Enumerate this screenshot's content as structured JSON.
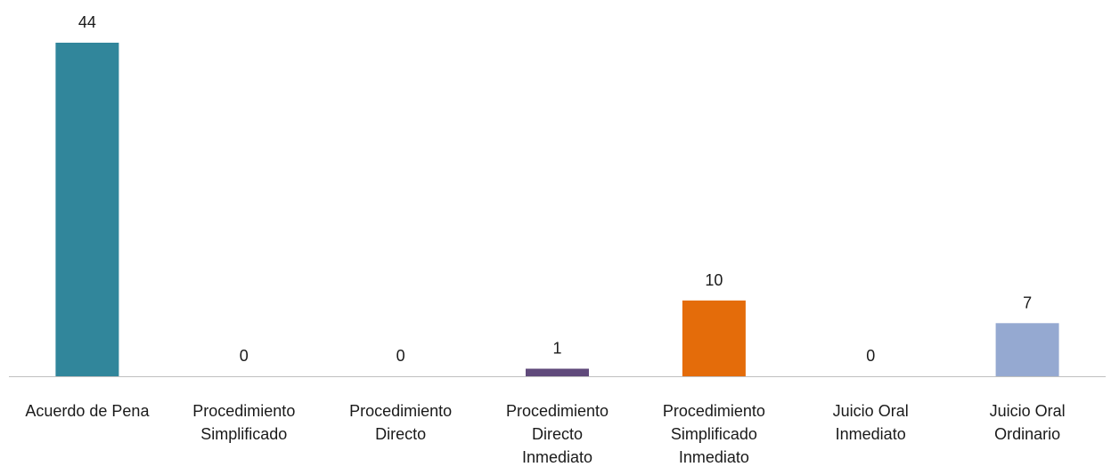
{
  "chart_data": {
    "type": "bar",
    "title": "",
    "xlabel": "",
    "ylabel": "",
    "categories": [
      [
        "Acuerdo de Pena"
      ],
      [
        "Procedimiento",
        "Simplificado"
      ],
      [
        "Procedimiento",
        "Directo"
      ],
      [
        "Procedimiento",
        "Directo",
        "Inmediato"
      ],
      [
        "Procedimiento",
        "Simplificado",
        "Inmediato"
      ],
      [
        "Juicio Oral",
        "Inmediato"
      ],
      [
        "Juicio Oral",
        "Ordinario"
      ]
    ],
    "values": [
      44,
      0,
      0,
      1,
      10,
      0,
      7
    ],
    "data_labels": [
      "44",
      "0",
      "0",
      "1",
      "10",
      "0",
      "7"
    ],
    "colors": [
      "#31869b",
      "#4f81bd",
      "#4f81bd",
      "#604a7b",
      "#e46c0a",
      "#4f81bd",
      "#95a9d1"
    ],
    "axis_color": "#bfbfbf",
    "ylim": [
      0,
      44
    ],
    "grid": false,
    "legend": "none"
  }
}
